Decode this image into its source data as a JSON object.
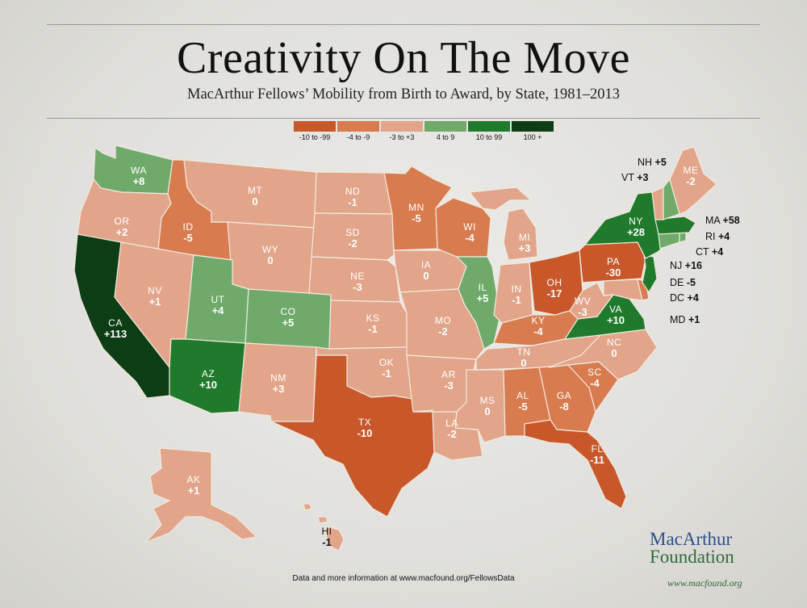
{
  "title": "Creativity On The Move",
  "subtitle": "MacArthur Fellows’ Mobility from Birth to Award, by State, 1981–2013",
  "legend": [
    {
      "label": "-10 to -99",
      "color": "#c8582a"
    },
    {
      "label": "-4 to -9",
      "color": "#d87b4e"
    },
    {
      "label": "-3 to +3",
      "color": "#e2a58a"
    },
    {
      "label": "4 to 9",
      "color": "#6faa6b"
    },
    {
      "label": "10 to 99",
      "color": "#1f7a2c"
    },
    {
      "label": "100 +",
      "color": "#0c3d14"
    }
  ],
  "states": {
    "WA": {
      "abbr": "WA",
      "value": "+8"
    },
    "OR": {
      "abbr": "OR",
      "value": "+2"
    },
    "CA": {
      "abbr": "CA",
      "value": "+113"
    },
    "ID": {
      "abbr": "ID",
      "value": "-5"
    },
    "NV": {
      "abbr": "NV",
      "value": "+1"
    },
    "MT": {
      "abbr": "MT",
      "value": "0"
    },
    "WY": {
      "abbr": "WY",
      "value": "0"
    },
    "UT": {
      "abbr": "UT",
      "value": "+4"
    },
    "AZ": {
      "abbr": "AZ",
      "value": "+10"
    },
    "CO": {
      "abbr": "CO",
      "value": "+5"
    },
    "NM": {
      "abbr": "NM",
      "value": "+3"
    },
    "ND": {
      "abbr": "ND",
      "value": "-1"
    },
    "SD": {
      "abbr": "SD",
      "value": "-2"
    },
    "NE": {
      "abbr": "NE",
      "value": "-3"
    },
    "KS": {
      "abbr": "KS",
      "value": "-1"
    },
    "OK": {
      "abbr": "OK",
      "value": "-1"
    },
    "TX": {
      "abbr": "TX",
      "value": "-10"
    },
    "MN": {
      "abbr": "MN",
      "value": "-5"
    },
    "IA": {
      "abbr": "IA",
      "value": "0"
    },
    "MO": {
      "abbr": "MO",
      "value": "-2"
    },
    "AR": {
      "abbr": "AR",
      "value": "-3"
    },
    "LA": {
      "abbr": "LA",
      "value": "-2"
    },
    "WI": {
      "abbr": "WI",
      "value": "-4"
    },
    "IL": {
      "abbr": "IL",
      "value": "+5"
    },
    "MI": {
      "abbr": "MI",
      "value": "+3"
    },
    "IN": {
      "abbr": "IN",
      "value": "-1"
    },
    "OH": {
      "abbr": "OH",
      "value": "-17"
    },
    "KY": {
      "abbr": "KY",
      "value": "-4"
    },
    "TN": {
      "abbr": "TN",
      "value": "0"
    },
    "MS": {
      "abbr": "MS",
      "value": "0"
    },
    "AL": {
      "abbr": "AL",
      "value": "-5"
    },
    "GA": {
      "abbr": "GA",
      "value": "-8"
    },
    "FL": {
      "abbr": "FL",
      "value": "-11"
    },
    "SC": {
      "abbr": "SC",
      "value": "-4"
    },
    "NC": {
      "abbr": "NC",
      "value": "0"
    },
    "VA": {
      "abbr": "VA",
      "value": "+10"
    },
    "WV": {
      "abbr": "WV",
      "value": "-3"
    },
    "PA": {
      "abbr": "PA",
      "value": "-30"
    },
    "NY": {
      "abbr": "NY",
      "value": "+28"
    },
    "ME": {
      "abbr": "ME",
      "value": "-2"
    },
    "AK": {
      "abbr": "AK",
      "value": "+1"
    },
    "HI": {
      "abbr": "HI",
      "value": "-1"
    }
  },
  "callouts": {
    "NH": {
      "abbr": "NH",
      "value": "+5"
    },
    "VT": {
      "abbr": "VT",
      "value": "+3"
    },
    "MA": {
      "abbr": "MA",
      "value": "+58"
    },
    "RI": {
      "abbr": "RI",
      "value": "+4"
    },
    "CT": {
      "abbr": "CT",
      "value": "+4"
    },
    "NJ": {
      "abbr": "NJ",
      "value": "+16"
    },
    "DE": {
      "abbr": "DE",
      "value": "-5"
    },
    "DC": {
      "abbr": "DC",
      "value": "+4"
    },
    "MD": {
      "abbr": "MD",
      "value": "+1"
    }
  },
  "footer": "Data and more information at www.macfound.org/FellowsData",
  "logo": {
    "line1": "MacArthur",
    "line2": "Foundation",
    "url": "www.macfound.org"
  }
}
